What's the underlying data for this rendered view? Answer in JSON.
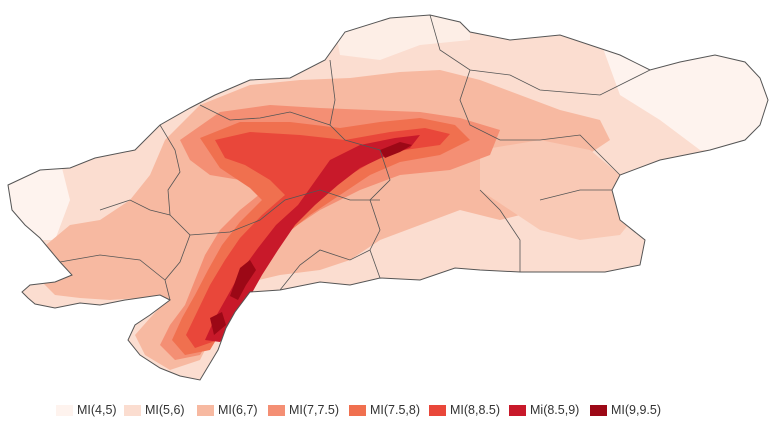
{
  "map": {
    "title": "",
    "legend": [
      {
        "label": "MI(4,5)",
        "color": "#fef3ee"
      },
      {
        "label": "MI(5,6)",
        "color": "#fbddd0"
      },
      {
        "label": "MI(6,7)",
        "color": "#f7b9a1"
      },
      {
        "label": "MI(7,7.5)",
        "color": "#f48f74"
      },
      {
        "label": "MI(7.5,8)",
        "color": "#f0704f"
      },
      {
        "label": "MI(8,8.5)",
        "color": "#e9473a"
      },
      {
        "label": "Mi(8.5,9)",
        "color": "#c8192a"
      },
      {
        "label": "MI(9,9.5)",
        "color": "#9c0816"
      }
    ]
  }
}
